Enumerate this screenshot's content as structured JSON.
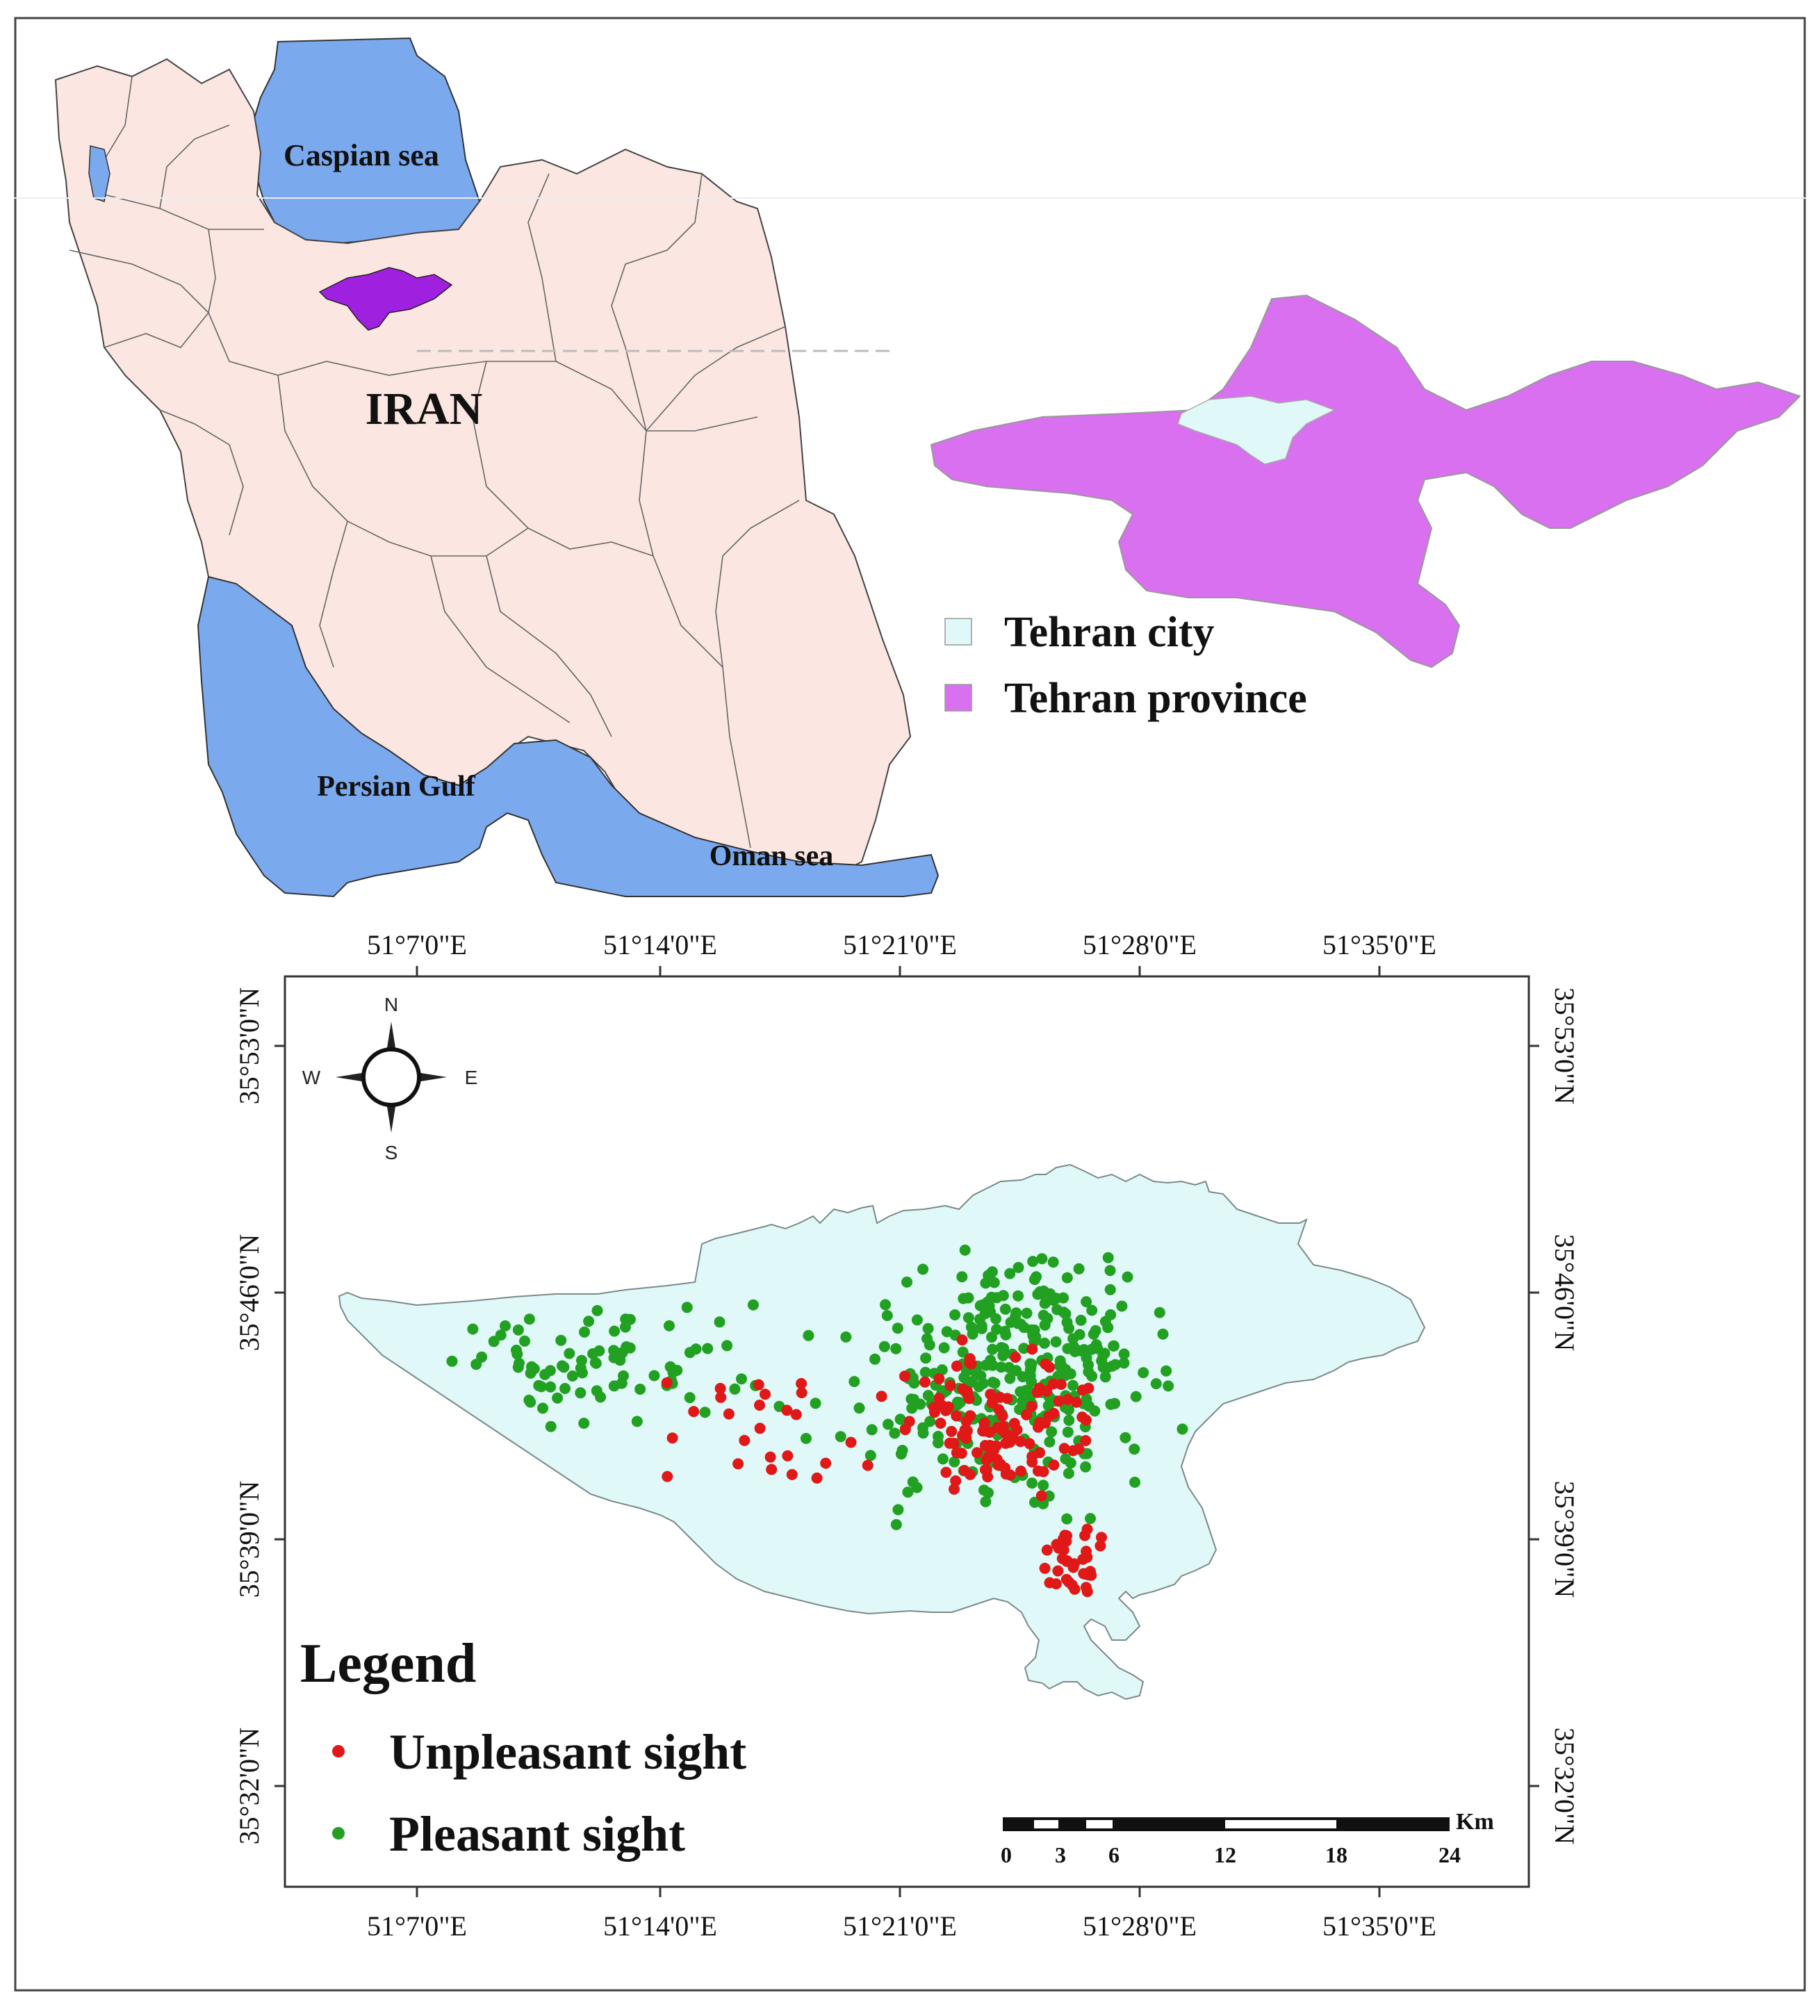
{
  "overview_map": {
    "country_label": "IRAN",
    "water_labels": {
      "caspian": "Caspian sea",
      "persian_gulf": "Persian Gulf",
      "oman": "Oman sea"
    },
    "colors": {
      "land": "#fbe6e1",
      "water": "#7aa9ee",
      "highlight": "#a020e0",
      "border": "#555555"
    }
  },
  "province_map": {
    "legend": [
      {
        "label": "Tehran city",
        "color": "#e0f8f8"
      },
      {
        "label": "Tehran province",
        "color": "#d870f0"
      }
    ]
  },
  "study_map": {
    "top_axis_labels": [
      "51°7'0\"E",
      "51°14'0\"E",
      "51°21'0\"E",
      "51°28'0\"E",
      "51°35'0\"E"
    ],
    "bottom_axis_labels": [
      "51°7'0\"E",
      "51°14'0\"E",
      "51°21'0\"E",
      "51°28'0\"E",
      "51°35'0\"E"
    ],
    "left_axis_labels": [
      "35°53'0\"N",
      "35°46'0\"N",
      "35°39'0\"N",
      "35°32'0\"N"
    ],
    "right_axis_labels": [
      "35°53'0\"N",
      "35°46'0\"N",
      "35°39'0\"N",
      "35°32'0\"N"
    ],
    "compass": {
      "n": "N",
      "s": "S",
      "e": "E",
      "w": "W"
    },
    "legend": {
      "title": "Legend",
      "items": [
        {
          "label": "Unpleasant sight",
          "color": "#e01818"
        },
        {
          "label": "Pleasant sight",
          "color": "#22a022"
        }
      ]
    },
    "scale_bar": {
      "unit": "Km",
      "ticks": [
        "0",
        "3",
        "6",
        "12",
        "18",
        "24"
      ]
    },
    "city_fill": "#e0f8f8",
    "points_summary": {
      "unpleasant_approx": 175,
      "pleasant_approx": 420
    }
  }
}
